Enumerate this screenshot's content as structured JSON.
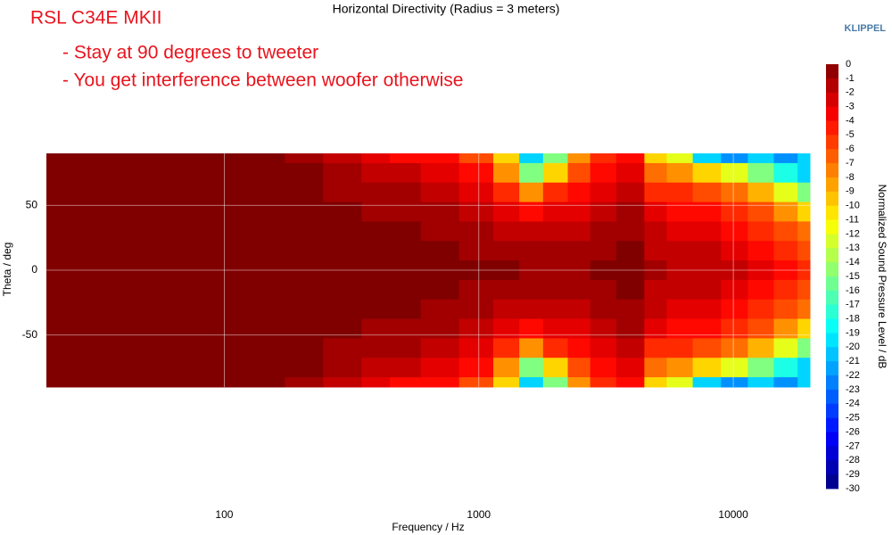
{
  "chart_data": {
    "type": "heatmap",
    "title": "Horizontal Directivity (Radius = 3 meters)",
    "annotations": [
      "RSL C34E MKII",
      "- Stay at 90 degrees to tweeter",
      "- You get interference between woofer otherwise"
    ],
    "brand": "KLIPPEL",
    "x_label": "Frequency / Hz",
    "y_label": "Theta / deg",
    "colorbar_label": "Normalized Sound Pressure Level / dB",
    "x": [
      20,
      30,
      50,
      70,
      100,
      150,
      200,
      300,
      400,
      500,
      700,
      1000,
      1300,
      1600,
      2000,
      2500,
      3000,
      4000,
      5000,
      6000,
      8000,
      10000,
      13000,
      16000,
      20000
    ],
    "y": [
      90,
      75,
      60,
      45,
      30,
      15,
      0,
      -15,
      -30,
      -45,
      -60,
      -75,
      -90
    ],
    "z": [
      [
        0,
        0,
        0,
        0,
        0,
        0,
        -1,
        -2,
        -3,
        -4,
        -4,
        -6,
        -10,
        -20,
        -15,
        -8,
        -5,
        -4,
        -10,
        -12,
        -20,
        -22,
        -20,
        -22,
        -20
      ],
      [
        0,
        0,
        0,
        0,
        0,
        0,
        0,
        -1,
        -2,
        -2,
        -3,
        -4,
        -8,
        -15,
        -10,
        -6,
        -4,
        -3,
        -7,
        -8,
        -10,
        -12,
        -15,
        -18,
        -20
      ],
      [
        0,
        0,
        0,
        0,
        0,
        0,
        0,
        -1,
        -1,
        -1,
        -2,
        -3,
        -5,
        -8,
        -5,
        -4,
        -3,
        -2,
        -5,
        -5,
        -6,
        -7,
        -9,
        -12,
        -15
      ],
      [
        0,
        0,
        0,
        0,
        0,
        0,
        0,
        0,
        -1,
        -1,
        -1,
        -2,
        -3,
        -4,
        -3,
        -3,
        -2,
        -1,
        -3,
        -4,
        -4,
        -5,
        -6,
        -8,
        -10
      ],
      [
        0,
        0,
        0,
        0,
        0,
        0,
        0,
        0,
        0,
        0,
        -1,
        -1,
        -2,
        -2,
        -2,
        -2,
        -1,
        -1,
        -2,
        -3,
        -3,
        -4,
        -5,
        -6,
        -7
      ],
      [
        0,
        0,
        0,
        0,
        0,
        0,
        0,
        0,
        0,
        0,
        0,
        -1,
        -1,
        -1,
        -1,
        -1,
        -1,
        0,
        -2,
        -2,
        -2,
        -3,
        -4,
        -5,
        -6
      ],
      [
        0,
        0,
        0,
        0,
        0,
        0,
        0,
        0,
        0,
        0,
        0,
        0,
        0,
        -1,
        -1,
        -1,
        0,
        0,
        -1,
        -2,
        -2,
        -2,
        -3,
        -4,
        -5
      ],
      [
        0,
        0,
        0,
        0,
        0,
        0,
        0,
        0,
        0,
        0,
        0,
        -1,
        -1,
        -1,
        -1,
        -1,
        -1,
        0,
        -2,
        -2,
        -2,
        -3,
        -4,
        -5,
        -6
      ],
      [
        0,
        0,
        0,
        0,
        0,
        0,
        0,
        0,
        0,
        0,
        -1,
        -1,
        -2,
        -2,
        -2,
        -2,
        -1,
        -1,
        -2,
        -3,
        -3,
        -4,
        -5,
        -6,
        -7
      ],
      [
        0,
        0,
        0,
        0,
        0,
        0,
        0,
        0,
        -1,
        -1,
        -1,
        -2,
        -3,
        -4,
        -3,
        -3,
        -2,
        -1,
        -3,
        -4,
        -4,
        -5,
        -6,
        -8,
        -10
      ],
      [
        0,
        0,
        0,
        0,
        0,
        0,
        0,
        -1,
        -1,
        -1,
        -2,
        -3,
        -5,
        -8,
        -5,
        -4,
        -3,
        -2,
        -5,
        -5,
        -6,
        -7,
        -9,
        -12,
        -15
      ],
      [
        0,
        0,
        0,
        0,
        0,
        0,
        0,
        -1,
        -2,
        -2,
        -3,
        -4,
        -8,
        -15,
        -10,
        -6,
        -4,
        -3,
        -7,
        -8,
        -10,
        -12,
        -15,
        -18,
        -20
      ],
      [
        0,
        0,
        0,
        0,
        0,
        0,
        -1,
        -2,
        -3,
        -4,
        -4,
        -6,
        -10,
        -20,
        -15,
        -8,
        -5,
        -4,
        -10,
        -12,
        -20,
        -22,
        -20,
        -22,
        -20
      ]
    ],
    "xlim": [
      20,
      20000
    ],
    "ylim": [
      -90,
      90
    ],
    "xscale": "log",
    "xticks": [
      100,
      1000,
      10000
    ],
    "yticks": [
      50,
      0,
      -50
    ],
    "grid": true,
    "colormap": "jet",
    "zlim": [
      -30,
      0
    ],
    "zticks": [
      0,
      -1,
      -2,
      -3,
      -4,
      -5,
      -6,
      -7,
      -8,
      -9,
      -10,
      -11,
      -12,
      -13,
      -14,
      -15,
      -16,
      -17,
      -18,
      -19,
      -20,
      -21,
      -22,
      -23,
      -24,
      -25,
      -26,
      -27,
      -28,
      -29,
      -30
    ]
  }
}
